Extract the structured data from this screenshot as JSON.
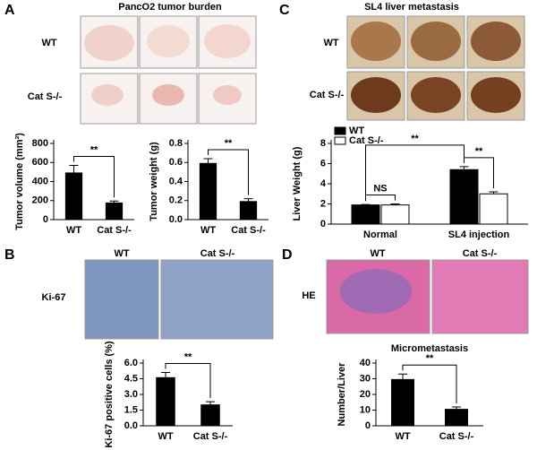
{
  "panels": [
    {
      "letter": "A",
      "title": "PancO2 tumor burden",
      "rows": [
        "WT",
        "Cat S-/-"
      ]
    },
    {
      "letter": "C",
      "title": "SL4 liver metastasis",
      "rows": [
        "WT",
        "Cat S-/-"
      ]
    },
    {
      "letter": "B",
      "columns": [
        "WT",
        "Cat S-/-"
      ],
      "row": "Ki-67"
    },
    {
      "letter": "D",
      "columns": [
        "WT",
        "Cat S-/-"
      ],
      "row": "HE"
    }
  ],
  "chart_data": [
    {
      "type": "bar",
      "ylabel": "Tumor volume (mm³)",
      "categories": [
        "WT",
        "Cat S-/-"
      ],
      "series": [
        {
          "color": "#000000",
          "values": [
            490,
            175
          ],
          "errors": [
            80,
            20
          ]
        }
      ],
      "ylim": [
        0,
        800
      ],
      "yticks": [
        0,
        200,
        400,
        600,
        800
      ],
      "annotations": [
        "**"
      ]
    },
    {
      "type": "bar",
      "ylabel": "Tumor weight (g)",
      "categories": [
        "WT",
        "Cat S-/-"
      ],
      "series": [
        {
          "color": "#000000",
          "values": [
            0.59,
            0.19
          ],
          "errors": [
            0.05,
            0.03
          ]
        }
      ],
      "ylim": [
        0,
        0.8
      ],
      "yticks": [
        {
          "value": 0,
          "label": "0.0"
        },
        0.2,
        0.4,
        0.6,
        0.8
      ],
      "annotations": [
        "**"
      ]
    },
    {
      "type": "bar",
      "ylabel": "Liver Weight  (g)",
      "categories": [
        "Normal",
        "SL4 injection"
      ],
      "series": [
        {
          "name": "WT",
          "color": "#000000",
          "values": [
            1.9,
            5.4
          ],
          "errors": [
            0.05,
            0.3
          ]
        },
        {
          "name": "Cat S-/-",
          "color": "#ffffff",
          "values": [
            1.9,
            3.0
          ],
          "errors": [
            0.1,
            0.2
          ]
        }
      ],
      "ylim": [
        0,
        8
      ],
      "yticks": [
        0,
        2,
        4,
        6,
        8
      ],
      "legend": "top-left",
      "annotations": [
        "NS",
        "**",
        "**"
      ]
    },
    {
      "type": "bar",
      "ylabel": "Ki-67 positive cells  (%)",
      "categories": [
        "WT",
        "Cat S-/-"
      ],
      "series": [
        {
          "color": "#000000",
          "values": [
            4.6,
            2.0
          ],
          "errors": [
            0.5,
            0.3
          ]
        }
      ],
      "ylim": [
        0,
        6
      ],
      "yticks": [
        {
          "value": 0,
          "label": "0.0"
        },
        1.5,
        {
          "value": 3,
          "label": "3.0"
        },
        4.5,
        {
          "value": 6,
          "label": "6.0"
        }
      ],
      "annotations": [
        "**"
      ]
    },
    {
      "type": "bar",
      "title": "Micrometastasis",
      "ylabel": "Number/Liver",
      "categories": [
        "WT",
        "Cat S-/-"
      ],
      "series": [
        {
          "color": "#000000",
          "values": [
            29.5,
            10.5
          ],
          "errors": [
            3.5,
            1.5
          ]
        }
      ],
      "ylim": [
        0,
        40
      ],
      "yticks": [
        0,
        10,
        20,
        30,
        40
      ],
      "annotations": [
        "**"
      ]
    }
  ]
}
